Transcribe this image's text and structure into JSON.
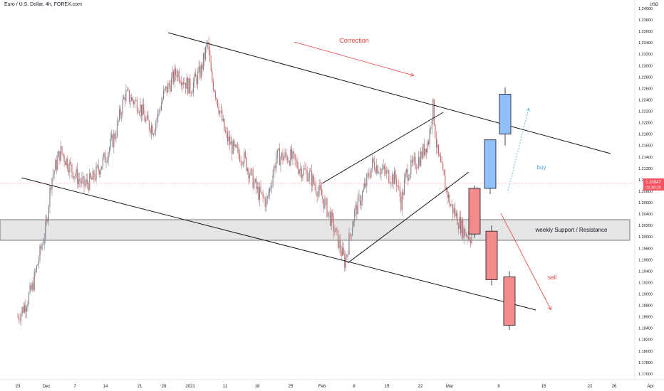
{
  "title": "Euro / U.S. Dollar, 4h, FOREX.com",
  "price_axis_unit": "USD",
  "price_ticks": [
    "1.24000",
    "1.23800",
    "1.23600",
    "1.23400",
    "1.23200",
    "1.23000",
    "1.22800",
    "1.22600",
    "1.22400",
    "1.22200",
    "1.22000",
    "1.21800",
    "1.21600",
    "1.21400",
    "1.21200",
    "1.21000",
    "1.20800",
    "1.20600",
    "1.20400",
    "1.20200",
    "1.20000",
    "1.19800",
    "1.19600",
    "1.19400",
    "1.19200",
    "1.19000",
    "1.18800",
    "1.18600",
    "1.18400",
    "1.18200",
    "1.18000",
    "1.17800",
    "1.17600"
  ],
  "current_price_label": "1.20947",
  "countdown_label": "01:30:20",
  "time_ticks": [
    "23",
    "Dec",
    "7",
    "14",
    "21",
    "28",
    "2021",
    "11",
    "18",
    "25",
    "Feb",
    "8",
    "15",
    "22",
    "Mar",
    "8",
    "15",
    "22",
    "26",
    "Apr"
  ],
  "annotations": {
    "correction": "Correction",
    "buy": "buy",
    "sell": "sell",
    "zone_label": "weekly Support / Resistance"
  },
  "colors": {
    "bull": "#b2b5be",
    "bear": "#e8a0a0",
    "projection_buy": "#90bff9",
    "projection_sell": "#f28c8c",
    "annotation_red": "#e53935",
    "annotation_blue": "#42a5f5",
    "zone_fill": "#e5e5e5"
  },
  "chart_data": {
    "type": "candlestick",
    "title": "Euro / U.S. Dollar, 4h, FOREX.com",
    "ylabel": "USD",
    "ylim": [
      1.1755,
      1.2405
    ],
    "x": [
      "23",
      "Dec",
      "7",
      "14",
      "21",
      "28",
      "2021",
      "11",
      "18",
      "25",
      "Feb",
      "8",
      "15",
      "22",
      "Mar",
      "8",
      "15",
      "22",
      "26",
      "Apr"
    ],
    "path": [
      [
        "Nov 23",
        1.186
      ],
      [
        "Nov 25",
        1.188
      ],
      [
        "Nov 27",
        1.191
      ],
      [
        "Dec 1",
        1.202
      ],
      [
        "Dec 2",
        1.21
      ],
      [
        "Dec 4",
        1.215
      ],
      [
        "Dec 7",
        1.211
      ],
      [
        "Dec 9",
        1.209
      ],
      [
        "Dec 11",
        1.21
      ],
      [
        "Dec 14",
        1.214
      ],
      [
        "Dec 16",
        1.218
      ],
      [
        "Dec 18",
        1.225
      ],
      [
        "Dec 21",
        1.223
      ],
      [
        "Dec 23",
        1.22
      ],
      [
        "Dec 25",
        1.219
      ],
      [
        "Dec 28",
        1.225
      ],
      [
        "Dec 30",
        1.229
      ],
      [
        "Jan 1",
        1.226
      ],
      [
        "Jan 4",
        1.229
      ],
      [
        "Jan 6",
        1.234
      ],
      [
        "Jan 7",
        1.228
      ],
      [
        "Jan 8",
        1.226
      ],
      [
        "Jan 11",
        1.218
      ],
      [
        "Jan 13",
        1.215
      ],
      [
        "Jan 15",
        1.214
      ],
      [
        "Jan 18",
        1.208
      ],
      [
        "Jan 20",
        1.206
      ],
      [
        "Jan 22",
        1.214
      ],
      [
        "Jan 25",
        1.214
      ],
      [
        "Jan 27",
        1.212
      ],
      [
        "Jan 29",
        1.211
      ],
      [
        "Feb 1",
        1.207
      ],
      [
        "Feb 3",
        1.203
      ],
      [
        "Feb 5",
        1.198
      ],
      [
        "Feb 6",
        1.1955
      ],
      [
        "Feb 8",
        1.204
      ],
      [
        "Feb 10",
        1.208
      ],
      [
        "Feb 12",
        1.213
      ],
      [
        "Feb 15",
        1.211
      ],
      [
        "Feb 17",
        1.21
      ],
      [
        "Feb 18",
        1.206
      ],
      [
        "Feb 19",
        1.211
      ],
      [
        "Feb 22",
        1.214
      ],
      [
        "Feb 24",
        1.217
      ],
      [
        "Feb 25",
        1.223
      ],
      [
        "Feb 26",
        1.215
      ],
      [
        "Mar 1",
        1.206
      ],
      [
        "Mar 3",
        1.201
      ],
      [
        "Mar 4",
        1.2
      ],
      [
        "Mar 5",
        1.209
      ]
    ],
    "current_price": 1.20947,
    "trendlines": [
      {
        "name": "channel-top",
        "from": [
          "Dec 28",
          1.2375
        ],
        "to": [
          "Mar 26",
          1.2145
        ]
      },
      {
        "name": "channel-bottom",
        "from": [
          "Nov 11",
          1.21
        ],
        "to": [
          "Mar 20",
          1.186
        ]
      },
      {
        "name": "wedge-top",
        "from": [
          "Jan 29",
          1.2095
        ],
        "to": [
          "Feb 25",
          1.222
        ]
      },
      {
        "name": "wedge-bottom",
        "from": [
          "Feb 5",
          1.1955
        ],
        "to": [
          "Mar 3",
          1.211
        ]
      }
    ],
    "zone": {
      "label": "weekly Support / Resistance",
      "from": 1.1999,
      "to": 1.20335
    },
    "projections": {
      "buy": [
        {
          "open": 1.2085,
          "close": 1.217,
          "high": 1.217,
          "low": 1.2075
        },
        {
          "open": 1.218,
          "close": 1.225,
          "high": 1.2262,
          "low": 1.216
        }
      ],
      "sell": [
        {
          "open": 1.2085,
          "close": 1.2005,
          "high": 1.209,
          "low": 1.1998
        },
        {
          "open": 1.201,
          "close": 1.1925,
          "high": 1.202,
          "low": 1.1915
        },
        {
          "open": 1.193,
          "close": 1.1845,
          "high": 1.194,
          "low": 1.1837
        }
      ]
    }
  }
}
